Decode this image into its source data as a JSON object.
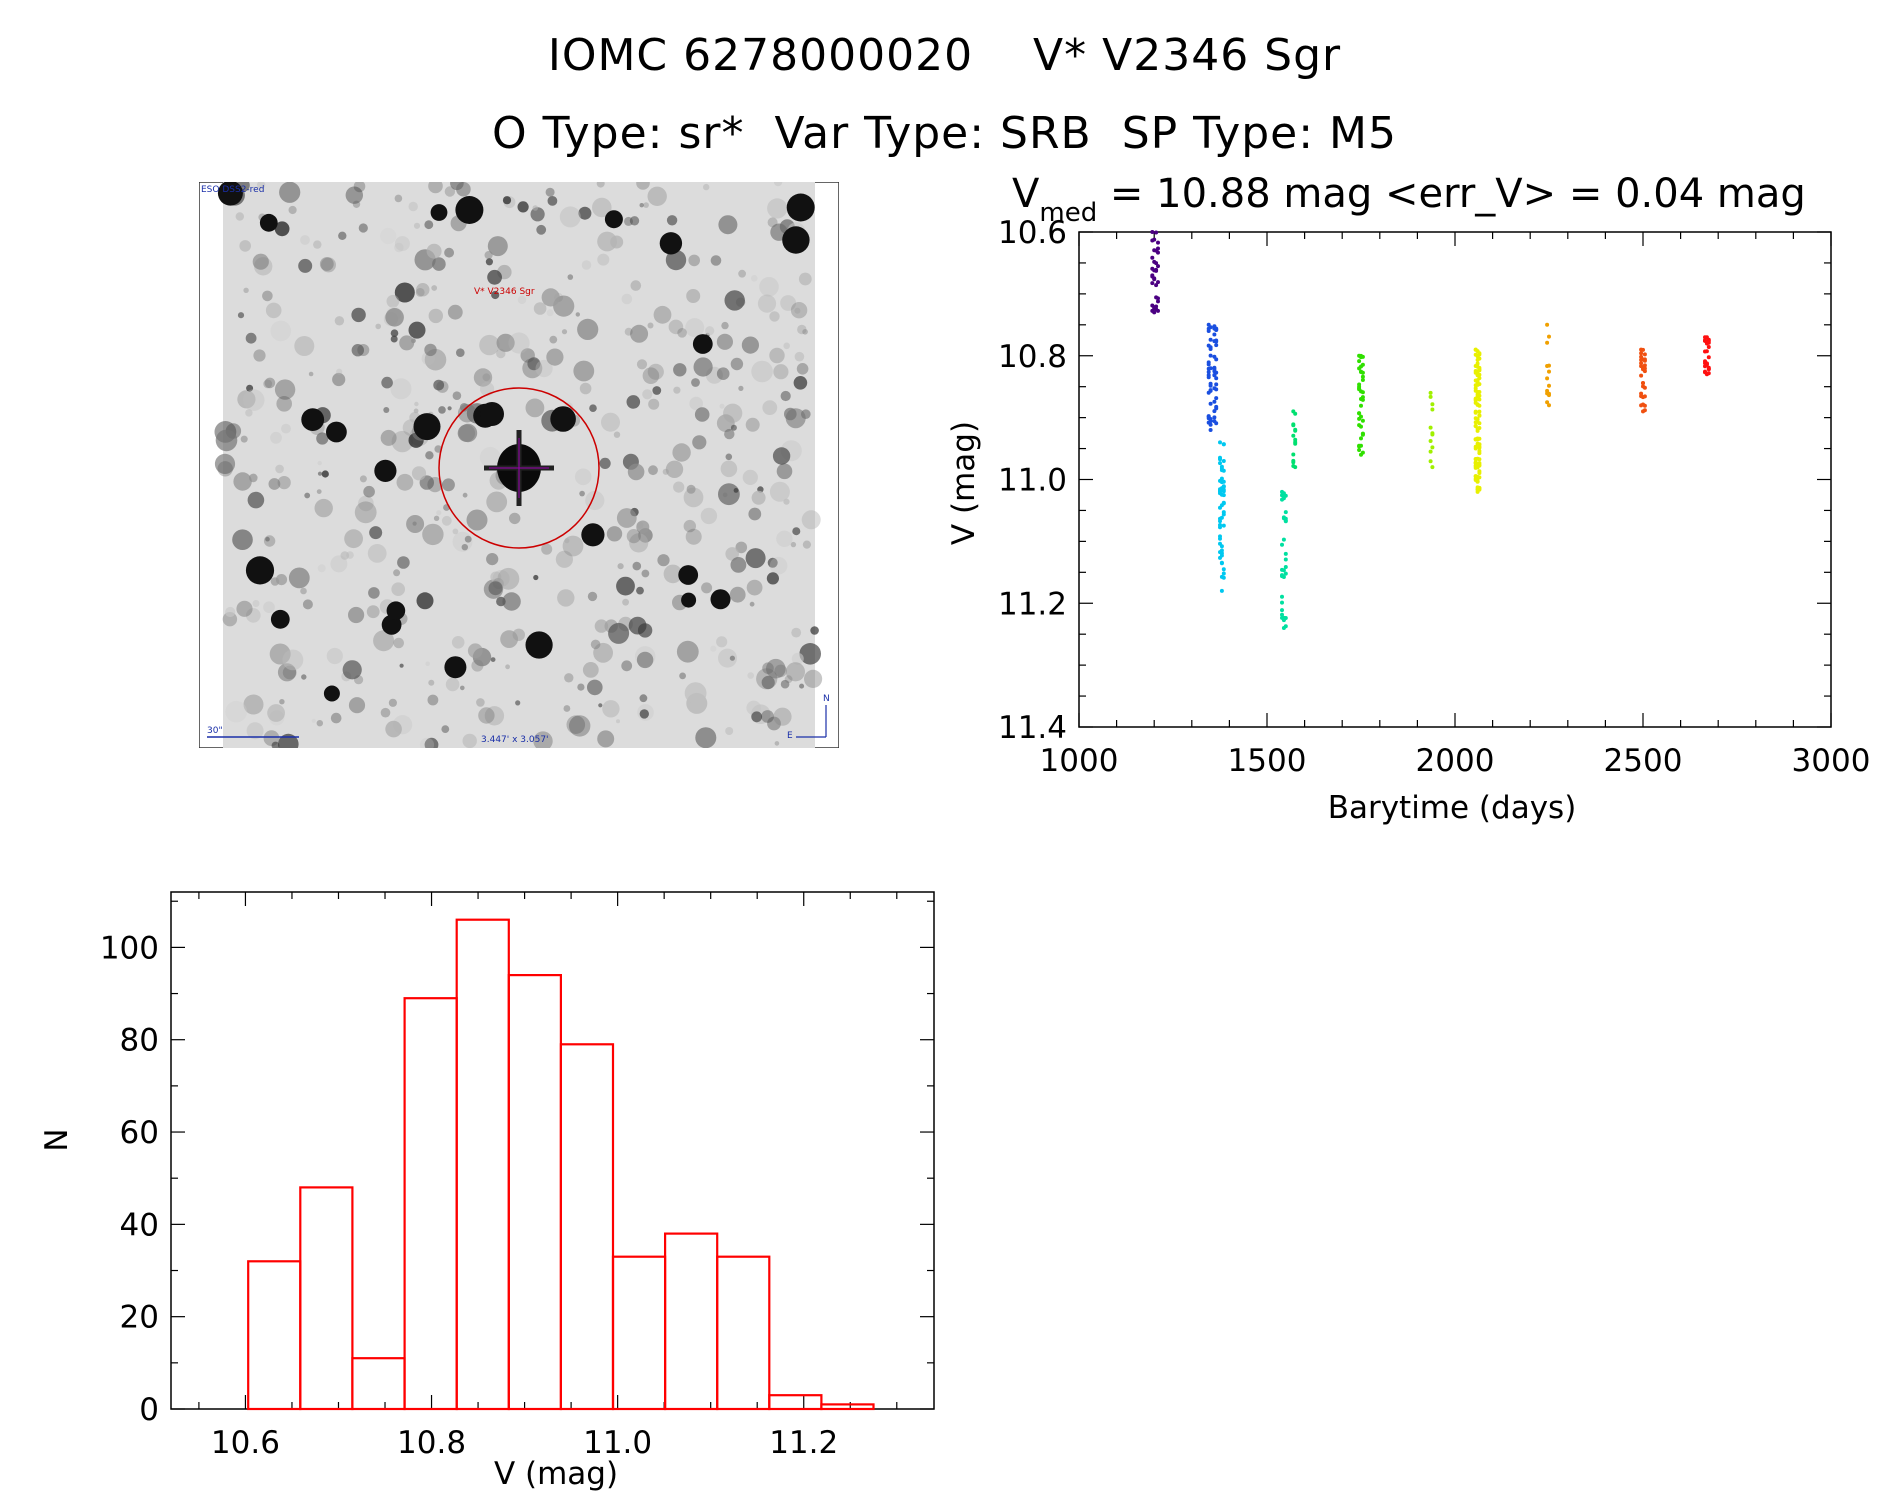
{
  "header": {
    "title_line1": "IOMC 6278000020    V* V2346 Sgr",
    "title_line2": "O Type: sr*  Var Type: SRB  SP Type: M5"
  },
  "image_panel": {
    "survey_label": "ESO DSS2-red",
    "object_label": "V* V2346 Sgr",
    "scale_label": "30\"",
    "size_label": "3.447' x 3.057'",
    "north_label": "N",
    "east_label": "E",
    "colors": {
      "circle": "#cc0000",
      "labels": "#1a2fa8",
      "cross": "#9a00b0"
    }
  },
  "chart_data": [
    {
      "type": "scatter",
      "title_main": "V",
      "title_sub": "med",
      "title_rest": " = 10.88 mag <err_V> = 0.04 mag",
      "xlabel": "Barytime (days)",
      "ylabel": "V (mag)",
      "xlim": [
        1000,
        3000
      ],
      "ylim": [
        11.4,
        10.6
      ],
      "y_inverted": true,
      "xticks": [
        "1000",
        "1500",
        "2000",
        "2500",
        "3000"
      ],
      "yticks": [
        "10.6",
        "10.8",
        "11.0",
        "11.2",
        "11.4"
      ],
      "series": [
        {
          "color": "#4b0082",
          "x": [
            1195,
            1200,
            1205,
            1210
          ],
          "y_min": 10.6,
          "y_max": 10.73,
          "count": 35
        },
        {
          "color": "#1a4fe0",
          "x": [
            1345,
            1350,
            1360,
            1365
          ],
          "y_min": 10.75,
          "y_max": 10.92,
          "count": 60
        },
        {
          "color": "#00c8f0",
          "x": [
            1375,
            1380,
            1385
          ],
          "y_min": 10.94,
          "y_max": 11.18,
          "count": 55
        },
        {
          "color": "#00e0a0",
          "x": [
            1540,
            1545,
            1550
          ],
          "y_min": 11.02,
          "y_max": 11.24,
          "count": 35
        },
        {
          "color": "#00e070",
          "x": [
            1570,
            1575
          ],
          "y_min": 10.89,
          "y_max": 10.98,
          "count": 15
        },
        {
          "color": "#30e000",
          "x": [
            1745,
            1750,
            1755
          ],
          "y_min": 10.8,
          "y_max": 10.96,
          "count": 40
        },
        {
          "color": "#a0f000",
          "x": [
            1935,
            1940
          ],
          "y_min": 10.86,
          "y_max": 10.98,
          "count": 12
        },
        {
          "color": "#e8f000",
          "x": [
            2055,
            2060,
            2065
          ],
          "y_min": 10.79,
          "y_max": 11.02,
          "count": 110
        },
        {
          "color": "#f0a000",
          "x": [
            2245,
            2250
          ],
          "y_min": 10.75,
          "y_max": 10.88,
          "count": 14
        },
        {
          "color": "#f05010",
          "x": [
            2495,
            2500,
            2505
          ],
          "y_min": 10.79,
          "y_max": 10.89,
          "count": 30
        },
        {
          "color": "#ff1010",
          "x": [
            2665,
            2670,
            2675
          ],
          "y_min": 10.77,
          "y_max": 10.83,
          "count": 28
        }
      ]
    },
    {
      "type": "bar",
      "xlabel": "V (mag)",
      "ylabel": "N",
      "xlim": [
        10.52,
        11.34
      ],
      "ylim": [
        0,
        112
      ],
      "xticks": [
        "10.6",
        "10.8",
        "11.0",
        "11.2"
      ],
      "yticks": [
        "0",
        "20",
        "40",
        "60",
        "80",
        "100"
      ],
      "bin_edges": [
        10.603,
        10.659,
        10.715,
        10.771,
        10.827,
        10.883,
        10.939,
        10.995,
        11.051,
        11.107,
        11.163,
        11.219,
        11.275
      ],
      "values": [
        32,
        48,
        11,
        89,
        106,
        94,
        79,
        33,
        38,
        33,
        3,
        1
      ],
      "color": "#ff0000"
    }
  ]
}
